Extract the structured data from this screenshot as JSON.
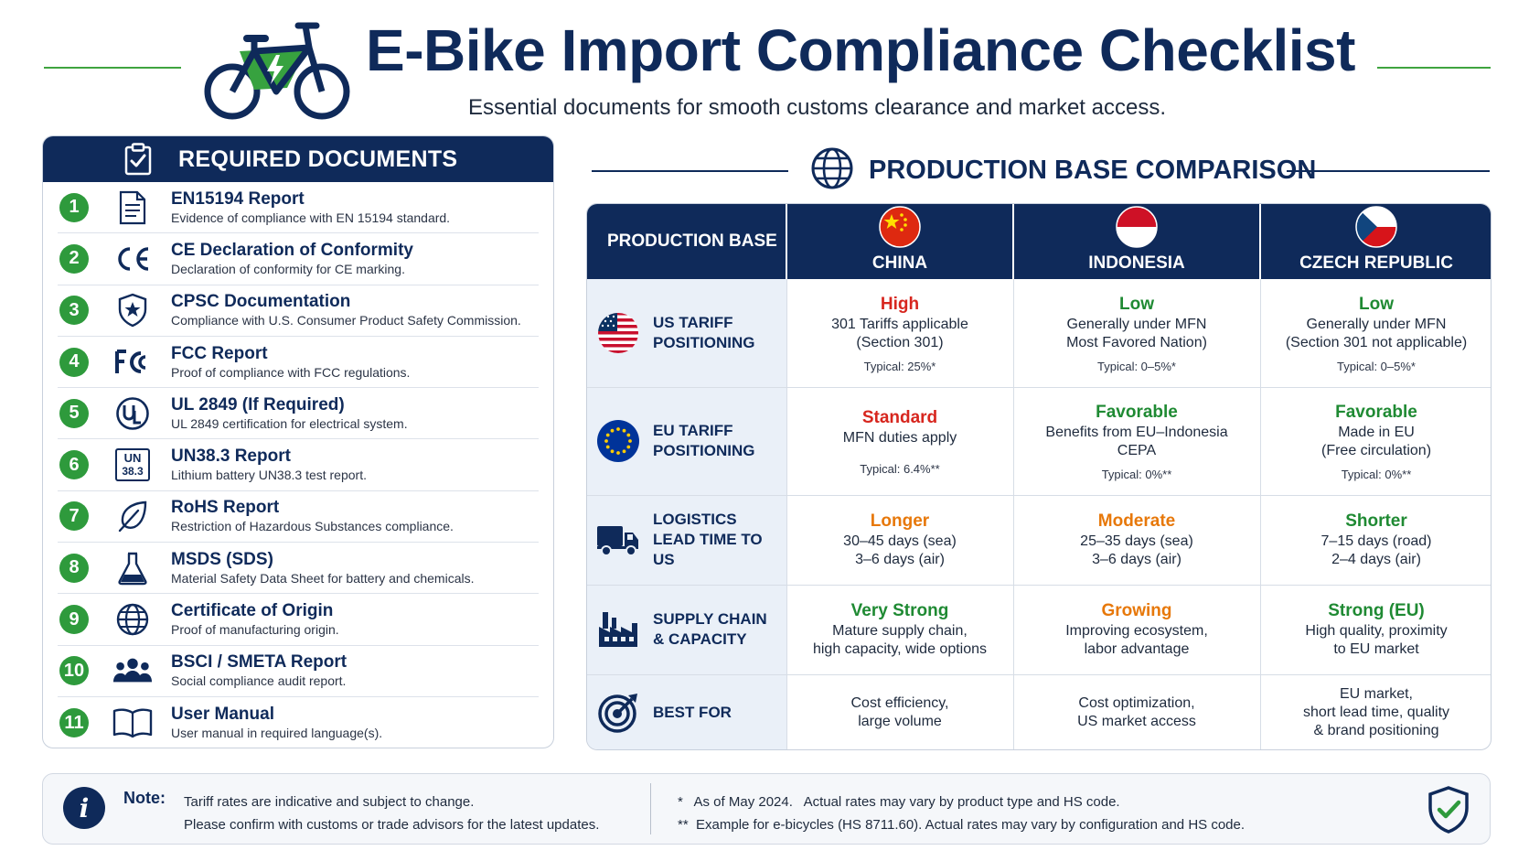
{
  "header": {
    "title": "E-Bike Import Compliance Checklist",
    "subtitle": "Essential documents for smooth customs clearance and market access."
  },
  "docs": {
    "heading": "REQUIRED DOCUMENTS",
    "items": [
      {
        "num": "1",
        "icon": "document-icon",
        "title": "EN15194 Report",
        "desc": "Evidence of compliance with EN 15194 standard."
      },
      {
        "num": "2",
        "icon": "ce-mark-icon",
        "title": "CE Declaration of Conformity",
        "desc": "Declaration of conformity for CE marking."
      },
      {
        "num": "3",
        "icon": "shield-star-icon",
        "title": "CPSC Documentation",
        "desc": "Compliance with U.S. Consumer Product Safety Commission."
      },
      {
        "num": "4",
        "icon": "fcc-icon",
        "title": "FCC Report",
        "desc": "Proof of compliance with FCC regulations."
      },
      {
        "num": "5",
        "icon": "ul-icon",
        "title": "UL 2849 (If Required)",
        "desc": "UL 2849 certification for electrical system."
      },
      {
        "num": "6",
        "icon": "un383-icon",
        "title": "UN38.3 Report",
        "desc": "Lithium battery UN38.3 test report."
      },
      {
        "num": "7",
        "icon": "leaf-icon",
        "title": "RoHS Report",
        "desc": "Restriction of Hazardous Substances compliance."
      },
      {
        "num": "8",
        "icon": "flask-icon",
        "title": "MSDS (SDS)",
        "desc": "Material Safety Data Sheet for battery and chemicals."
      },
      {
        "num": "9",
        "icon": "globe-icon",
        "title": "Certificate of Origin",
        "desc": "Proof of manufacturing origin."
      },
      {
        "num": "10",
        "icon": "people-icon",
        "title": "BSCI / SMETA Report",
        "desc": "Social compliance audit report."
      },
      {
        "num": "11",
        "icon": "book-icon",
        "title": "User Manual",
        "desc": "User manual in required language(s)."
      }
    ]
  },
  "comparison": {
    "heading": "PRODUCTION BASE COMPARISON",
    "base_label": "PRODUCTION BASE",
    "icon_un_line1": "UN",
    "icon_un_line2": "38.3",
    "countries": [
      {
        "name": "CHINA",
        "flag": "china-flag-icon"
      },
      {
        "name": "INDONESIA",
        "flag": "indonesia-flag-icon"
      },
      {
        "name": "CZECH REPUBLIC",
        "flag": "czech-flag-icon"
      }
    ],
    "rows": [
      {
        "label1": "US TARIFF",
        "label2": "POSITIONING",
        "icon": "us-flag-icon",
        "cells": [
          {
            "level": "High",
            "tone": "red",
            "l1": "301 Tariffs applicable",
            "l2": "(Section 301)",
            "typ": "Typical: 25%*"
          },
          {
            "level": "Low",
            "tone": "green",
            "l1": "Generally under MFN",
            "l2": "Most Favored Nation)",
            "typ": "Typical: 0–5%*"
          },
          {
            "level": "Low",
            "tone": "green",
            "l1": "Generally under MFN",
            "l2": "(Section 301 not applicable)",
            "typ": "Typical: 0–5%*"
          }
        ]
      },
      {
        "label1": "EU TARIFF",
        "label2": "POSITIONING",
        "icon": "eu-flag-icon",
        "cells": [
          {
            "level": "Standard",
            "tone": "red",
            "l1": "MFN duties apply",
            "l2": "",
            "typ": "Typical: 6.4%**"
          },
          {
            "level": "Favorable",
            "tone": "green",
            "l1": "Benefits from EU–Indonesia",
            "l2": "CEPA",
            "typ": "Typical: 0%**"
          },
          {
            "level": "Favorable",
            "tone": "green",
            "l1": "Made in EU",
            "l2": "(Free circulation)",
            "typ": "Typical: 0%**"
          }
        ]
      },
      {
        "label1": "LOGISTICS",
        "label2": "LEAD TIME TO US",
        "icon": "truck-icon",
        "cells": [
          {
            "level": "Longer",
            "tone": "orange",
            "l1": "30–45 days (sea)",
            "l2": "3–6 days (air)",
            "typ": ""
          },
          {
            "level": "Moderate",
            "tone": "orange",
            "l1": "25–35 days (sea)",
            "l2": "3–6 days (air)",
            "typ": ""
          },
          {
            "level": "Shorter",
            "tone": "green",
            "l1": "7–15 days (road)",
            "l2": "2–4 days (air)",
            "typ": ""
          }
        ]
      },
      {
        "label1": "SUPPLY CHAIN",
        "label2": "& CAPACITY",
        "icon": "factory-icon",
        "cells": [
          {
            "level": "Very Strong",
            "tone": "green",
            "l1": "Mature supply chain,",
            "l2": "high capacity, wide options",
            "typ": ""
          },
          {
            "level": "Growing",
            "tone": "orange",
            "l1": "Improving ecosystem,",
            "l2": "labor advantage",
            "typ": ""
          },
          {
            "level": "Strong (EU)",
            "tone": "green",
            "l1": "High quality, proximity",
            "l2": "to EU market",
            "typ": ""
          }
        ]
      },
      {
        "label1": "BEST FOR",
        "label2": "",
        "icon": "target-icon",
        "cells": [
          {
            "level": "",
            "tone": "",
            "l1": "Cost efficiency,",
            "l2": "large volume",
            "l3": "",
            "typ": ""
          },
          {
            "level": "",
            "tone": "",
            "l1": "Cost optimization,",
            "l2": "US market access",
            "l3": "",
            "typ": ""
          },
          {
            "level": "",
            "tone": "",
            "l1": "EU market,",
            "l2": "short lead time, quality",
            "l3": "& brand positioning",
            "typ": ""
          }
        ]
      }
    ]
  },
  "note": {
    "label": "Note:",
    "line1": "Tariff rates are indicative and subject to change.",
    "line2": "Please confirm with customs or trade advisors for the latest updates.",
    "fn1": "*   As of May 2024.   Actual rates may vary by product type and HS code.",
    "fn2": "**  Example for e-bicycles (HS 8711.60). Actual rates may vary by configuration and HS code."
  },
  "colors": {
    "navy": "#0f2a5a",
    "green": "#2e9a3c",
    "red": "#d7261e",
    "orange": "#e7780a"
  }
}
